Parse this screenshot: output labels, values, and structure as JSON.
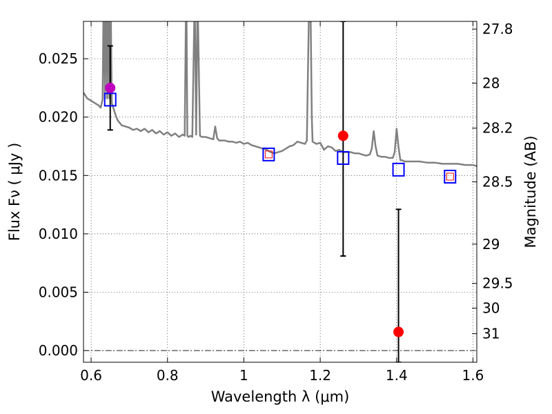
{
  "chart_data": {
    "type": "scatter",
    "title": "",
    "xlabel": "Wavelength  λ (μm)",
    "ylabel": "Flux  Fν  ( μJy )",
    "y2label": "Magnitude (AB)",
    "xlim": [
      0.58,
      1.61
    ],
    "ylim": [
      -0.001,
      0.0282
    ],
    "grid": true,
    "x_ticks": [
      {
        "value": 0.6,
        "label": "0.6"
      },
      {
        "value": 0.8,
        "label": "0.8"
      },
      {
        "value": 1.0,
        "label": "1"
      },
      {
        "value": 1.2,
        "label": "1.2"
      },
      {
        "value": 1.4,
        "label": "1.4"
      },
      {
        "value": 1.6,
        "label": "1.6"
      }
    ],
    "y_ticks": [
      {
        "value": 0.0,
        "label": "0.000"
      },
      {
        "value": 0.005,
        "label": "0.005"
      },
      {
        "value": 0.01,
        "label": "0.010"
      },
      {
        "value": 0.015,
        "label": "0.015"
      },
      {
        "value": 0.02,
        "label": "0.020"
      },
      {
        "value": 0.025,
        "label": "0.025"
      }
    ],
    "y2_ticks": [
      {
        "magnitude": 27.8,
        "label": "27.8"
      },
      {
        "magnitude": 28.0,
        "label": "28"
      },
      {
        "magnitude": 28.2,
        "label": "28.2"
      },
      {
        "magnitude": 28.5,
        "label": "28.5"
      },
      {
        "magnitude": 29.0,
        "label": "29"
      },
      {
        "magnitude": 29.5,
        "label": "29.5"
      },
      {
        "magnitude": 30.0,
        "label": "30"
      },
      {
        "magnitude": 31.0,
        "label": "31"
      }
    ],
    "spectrum": {
      "color": "#808080",
      "x": [
        0.58,
        0.59,
        0.6,
        0.61,
        0.62,
        0.625,
        0.63,
        0.632,
        0.634,
        0.636,
        0.638,
        0.64,
        0.642,
        0.644,
        0.646,
        0.648,
        0.65,
        0.652,
        0.654,
        0.656,
        0.658,
        0.66,
        0.663,
        0.666,
        0.67,
        0.675,
        0.68,
        0.69,
        0.7,
        0.71,
        0.72,
        0.73,
        0.74,
        0.75,
        0.76,
        0.77,
        0.78,
        0.79,
        0.8,
        0.81,
        0.82,
        0.83,
        0.84,
        0.845,
        0.848,
        0.85,
        0.852,
        0.855,
        0.86,
        0.865,
        0.87,
        0.872,
        0.875,
        0.878,
        0.88,
        0.885,
        0.89,
        0.9,
        0.91,
        0.92,
        0.925,
        0.93,
        0.935,
        0.94,
        0.95,
        0.96,
        0.97,
        0.98,
        0.99,
        1.0,
        1.01,
        1.02,
        1.03,
        1.04,
        1.05,
        1.06,
        1.07,
        1.08,
        1.09,
        1.1,
        1.11,
        1.12,
        1.13,
        1.14,
        1.15,
        1.16,
        1.165,
        1.17,
        1.172,
        1.175,
        1.178,
        1.18,
        1.185,
        1.19,
        1.2,
        1.21,
        1.22,
        1.23,
        1.24,
        1.25,
        1.26,
        1.27,
        1.28,
        1.29,
        1.3,
        1.31,
        1.32,
        1.33,
        1.335,
        1.34,
        1.345,
        1.35,
        1.36,
        1.37,
        1.38,
        1.39,
        1.395,
        1.4,
        1.405,
        1.41,
        1.415,
        1.42,
        1.44,
        1.46,
        1.48,
        1.5,
        1.52,
        1.54,
        1.56,
        1.58,
        1.6,
        1.61
      ],
      "y": [
        0.0221,
        0.0216,
        0.0214,
        0.0212,
        0.021,
        0.0208,
        0.0215,
        0.0282,
        0.0282,
        0.0216,
        0.0282,
        0.0282,
        0.0216,
        0.0282,
        0.0282,
        0.0216,
        0.0282,
        0.0282,
        0.0212,
        0.021,
        0.0208,
        0.0206,
        0.0203,
        0.02,
        0.0197,
        0.0195,
        0.0193,
        0.0192,
        0.0191,
        0.0189,
        0.019,
        0.0188,
        0.019,
        0.0187,
        0.0189,
        0.0186,
        0.0188,
        0.0185,
        0.0187,
        0.0184,
        0.0186,
        0.0183,
        0.0185,
        0.0184,
        0.0282,
        0.0282,
        0.0184,
        0.0183,
        0.0184,
        0.0183,
        0.0282,
        0.0282,
        0.0185,
        0.0282,
        0.0282,
        0.0184,
        0.0183,
        0.0183,
        0.0182,
        0.0181,
        0.0192,
        0.0182,
        0.018,
        0.018,
        0.018,
        0.0179,
        0.0179,
        0.0178,
        0.0179,
        0.0177,
        0.0178,
        0.0176,
        0.0175,
        0.0174,
        0.0173,
        0.0172,
        0.017,
        0.0169,
        0.017,
        0.0171,
        0.0173,
        0.0175,
        0.0176,
        0.0179,
        0.0178,
        0.0177,
        0.018,
        0.0282,
        0.0282,
        0.0282,
        0.02,
        0.0179,
        0.0178,
        0.0177,
        0.0178,
        0.0172,
        0.0175,
        0.0174,
        0.0171,
        0.0172,
        0.017,
        0.017,
        0.017,
        0.0169,
        0.0169,
        0.0168,
        0.0167,
        0.0168,
        0.0173,
        0.0188,
        0.0175,
        0.0167,
        0.0166,
        0.0166,
        0.0165,
        0.0165,
        0.017,
        0.019,
        0.0174,
        0.0163,
        0.0163,
        0.0162,
        0.0162,
        0.0162,
        0.0161,
        0.0161,
        0.016,
        0.016,
        0.016,
        0.0159,
        0.0159,
        0.0158
      ]
    },
    "magenta_point": {
      "x": 0.65,
      "y": 0.0225,
      "color": "#bf00bf",
      "err_low": 0.0189,
      "err_high": 0.0261
    },
    "red_points": [
      {
        "x": 1.26,
        "y": 0.0184,
        "err_low": 0.0081,
        "err_high": 0.0282,
        "color": "#ff0000"
      },
      {
        "x": 1.405,
        "y": 0.0016,
        "err_low": -0.001,
        "err_high": 0.0121,
        "color": "#ff0000"
      }
    ],
    "blue_squares": {
      "color": "#0000ff",
      "points": [
        {
          "x": 0.65,
          "y": 0.0215
        },
        {
          "x": 1.065,
          "y": 0.0168
        },
        {
          "x": 1.26,
          "y": 0.0165
        },
        {
          "x": 1.405,
          "y": 0.0155
        },
        {
          "x": 1.54,
          "y": 0.0149
        }
      ]
    },
    "red_squares": {
      "color": "#ff0000",
      "points": [
        {
          "x": 1.065,
          "y": 0.0168
        },
        {
          "x": 1.54,
          "y": 0.0149
        }
      ]
    },
    "zero_line": {
      "y": 0.0
    }
  }
}
